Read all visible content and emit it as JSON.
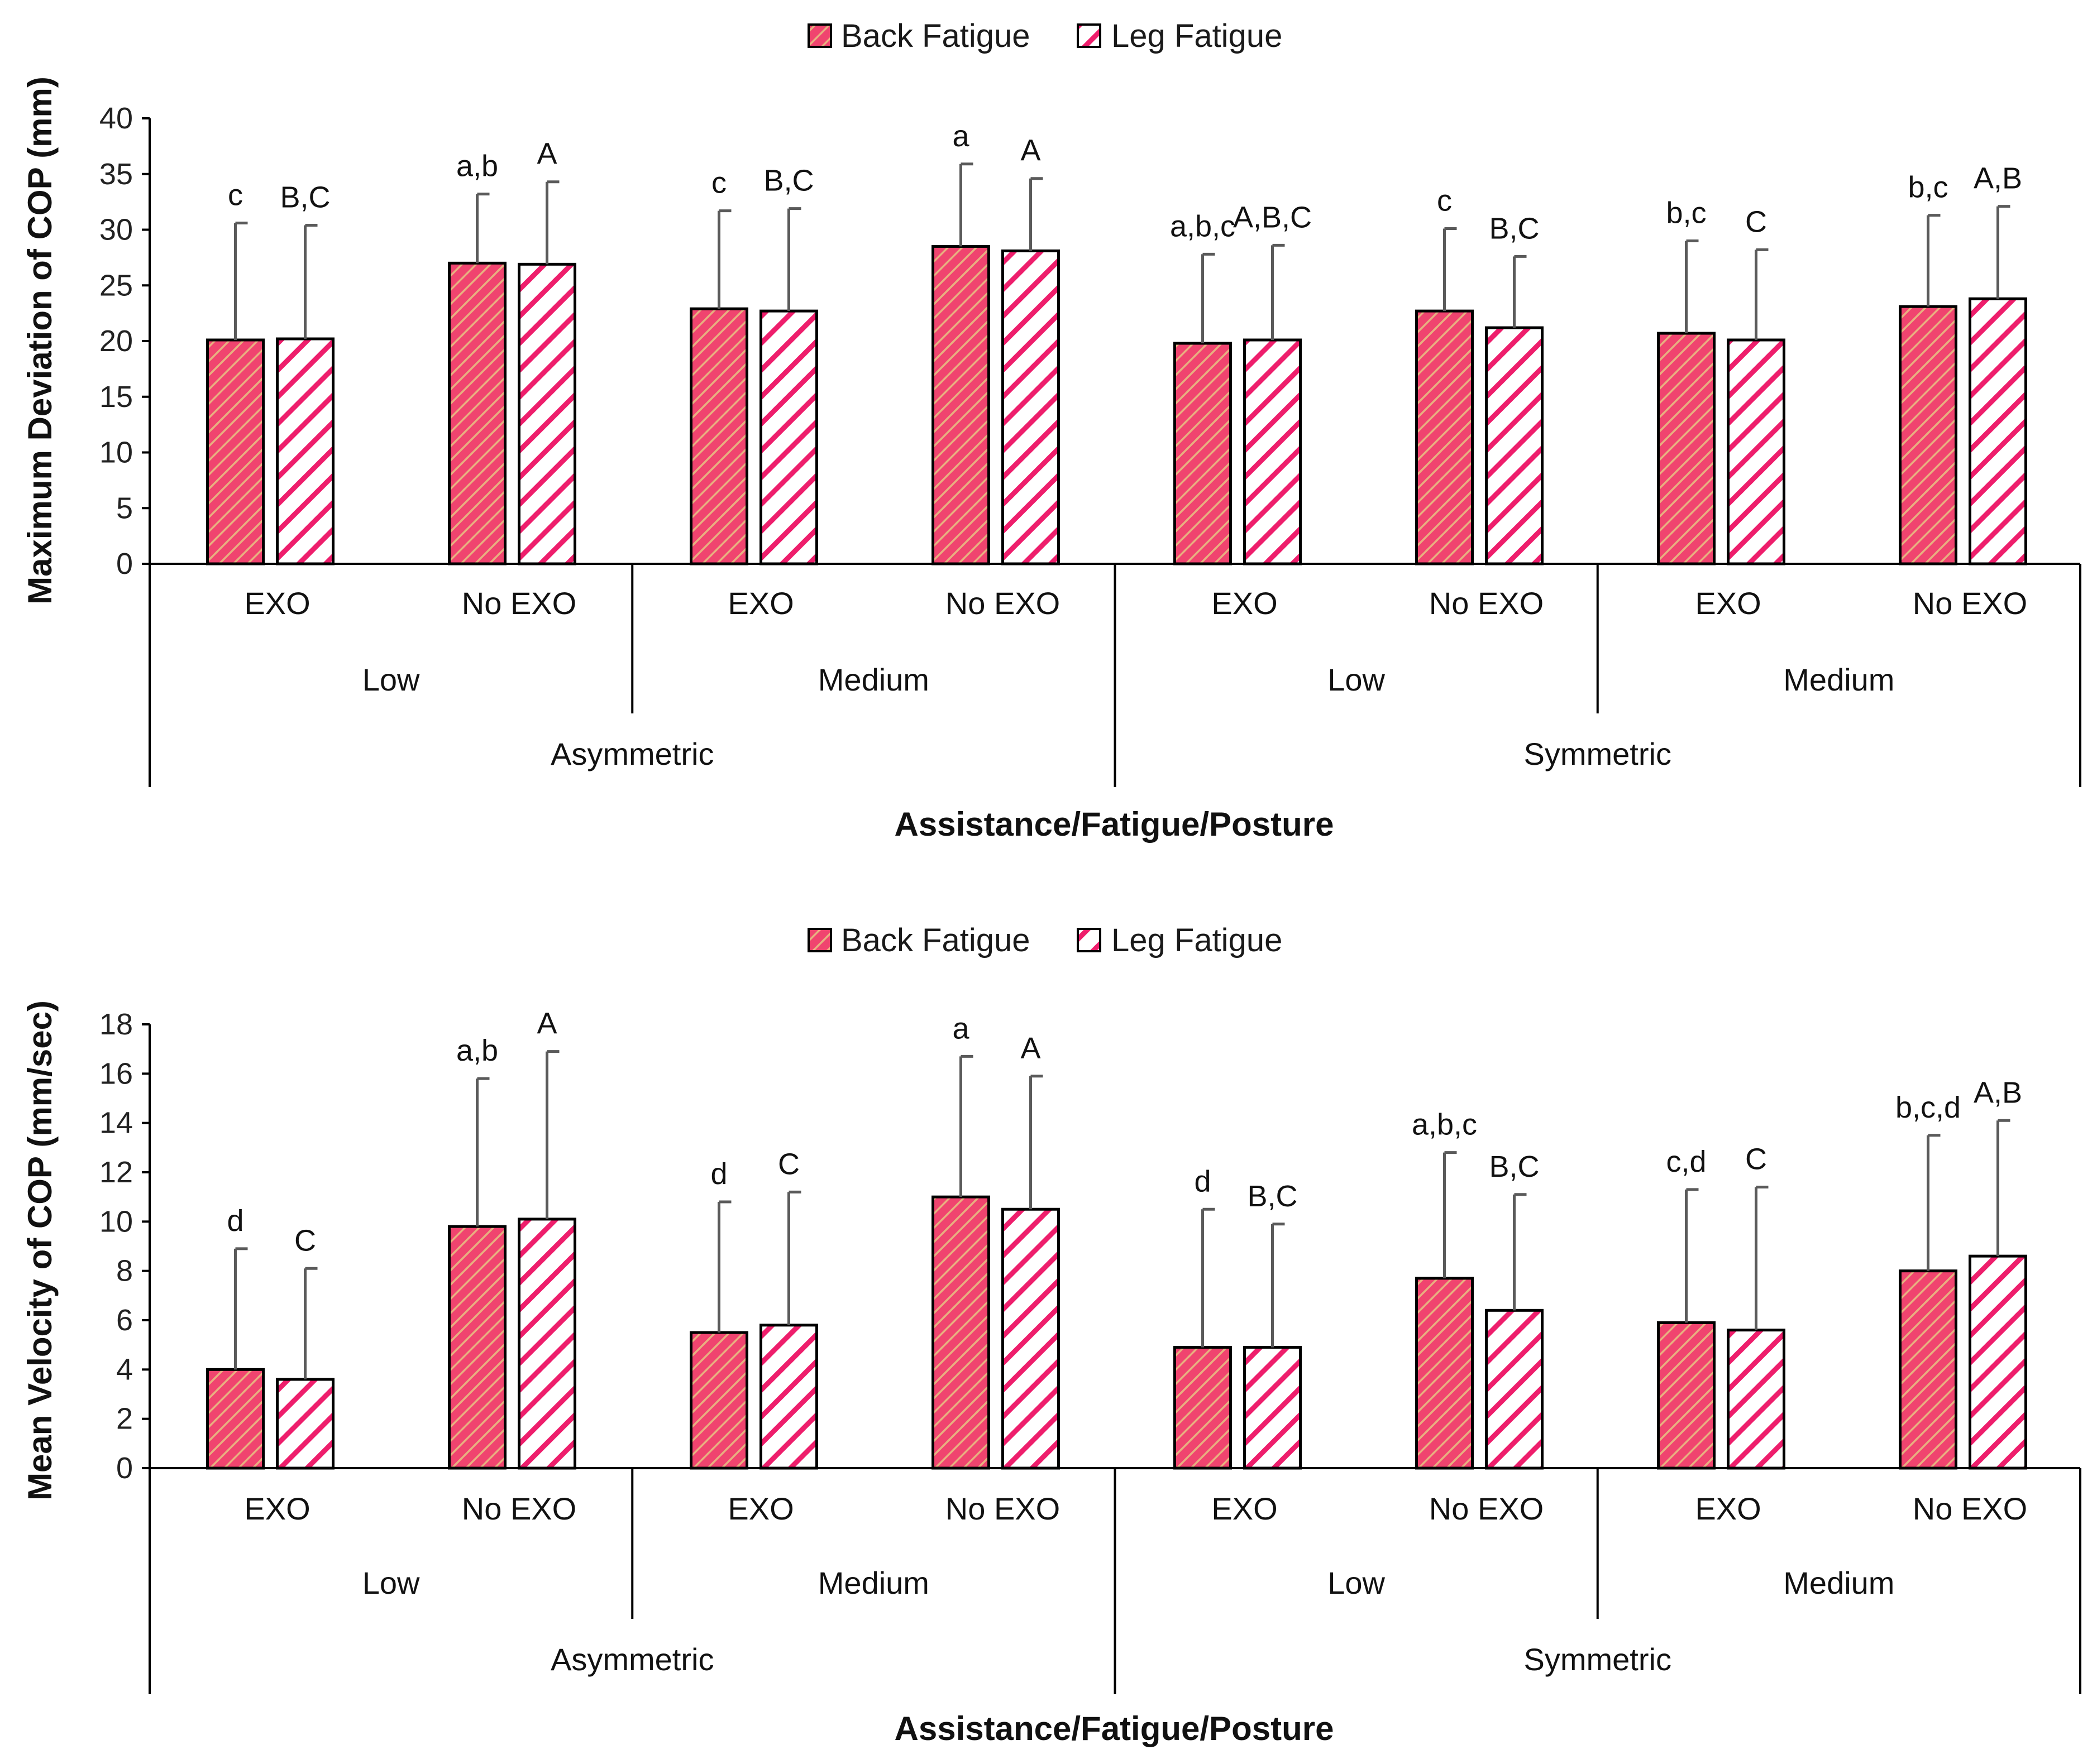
{
  "colors": {
    "back_fatigue": "#f0446f",
    "back_fatigue_hatch": "#e8b080",
    "leg_fatigue": "#ee1e6c",
    "leg_fatigue_hatch": "#ffffff",
    "error_bar": "#5a5a5a",
    "axis": "#000000"
  },
  "chart_data": [
    {
      "type": "bar",
      "legend": [
        "Back Fatigue",
        "Leg Fatigue"
      ],
      "legend_position": "top-center",
      "ylabel": "Maximum Deviation of COP (mm)",
      "xlabel": "Assistance/Fatigue/Posture",
      "ylim": [
        0,
        40
      ],
      "yticks": [
        "0",
        "5",
        "10",
        "15",
        "20",
        "25",
        "30",
        "35",
        "40"
      ],
      "categories": [
        "EXO",
        "No EXO",
        "EXO",
        "No EXO",
        "EXO",
        "No EXO",
        "EXO",
        "No EXO"
      ],
      "fatigue_groups": [
        "Low",
        "Medium",
        "Low",
        "Medium"
      ],
      "posture_groups": [
        "Asymmetric",
        "Symmetric"
      ],
      "series": [
        {
          "name": "Back Fatigue",
          "values": [
            20.1,
            27.0,
            22.9,
            28.5,
            19.8,
            22.7,
            20.7,
            23.1
          ],
          "error_upper": [
            30.6,
            33.2,
            31.7,
            35.9,
            27.8,
            30.1,
            29.0,
            31.3
          ],
          "labels": [
            "c",
            "a,b",
            "c",
            "a",
            "a,b,c",
            "c",
            "b,c",
            "b,c"
          ]
        },
        {
          "name": "Leg Fatigue",
          "values": [
            20.2,
            26.9,
            22.7,
            28.1,
            20.1,
            21.2,
            20.1,
            23.8
          ],
          "error_upper": [
            30.4,
            34.3,
            31.9,
            34.6,
            28.6,
            27.6,
            28.2,
            32.1
          ],
          "labels": [
            "B,C",
            "A",
            "B,C",
            "A",
            "A,B,C",
            "B,C",
            "C",
            "A,B"
          ]
        }
      ]
    },
    {
      "type": "bar",
      "legend": [
        "Back Fatigue",
        "Leg Fatigue"
      ],
      "legend_position": "top-center",
      "ylabel": "Mean Velocity of COP (mm/sec)",
      "xlabel": "Assistance/Fatigue/Posture",
      "ylim": [
        0,
        18
      ],
      "yticks": [
        "0",
        "2",
        "4",
        "6",
        "8",
        "10",
        "12",
        "14",
        "16",
        "18"
      ],
      "categories": [
        "EXO",
        "No EXO",
        "EXO",
        "No EXO",
        "EXO",
        "No EXO",
        "EXO",
        "No EXO"
      ],
      "fatigue_groups": [
        "Low",
        "Medium",
        "Low",
        "Medium"
      ],
      "posture_groups": [
        "Asymmetric",
        "Symmetric"
      ],
      "series": [
        {
          "name": "Back Fatigue",
          "values": [
            4.0,
            9.8,
            5.5,
            11.0,
            4.9,
            7.7,
            5.9,
            8.0
          ],
          "error_upper": [
            8.9,
            15.8,
            10.8,
            16.7,
            10.5,
            12.8,
            11.3,
            13.5
          ],
          "labels": [
            "d",
            "a,b",
            "d",
            "a",
            "d",
            "a,b,c",
            "c,d",
            "b,c,d"
          ]
        },
        {
          "name": "Leg Fatigue",
          "values": [
            3.6,
            10.1,
            5.8,
            10.5,
            4.9,
            6.4,
            5.6,
            8.6
          ],
          "error_upper": [
            8.1,
            16.9,
            11.2,
            15.9,
            9.9,
            11.1,
            11.4,
            14.1
          ],
          "labels": [
            "C",
            "A",
            "C",
            "A",
            "B,C",
            "B,C",
            "C",
            "A,B"
          ]
        }
      ]
    }
  ]
}
